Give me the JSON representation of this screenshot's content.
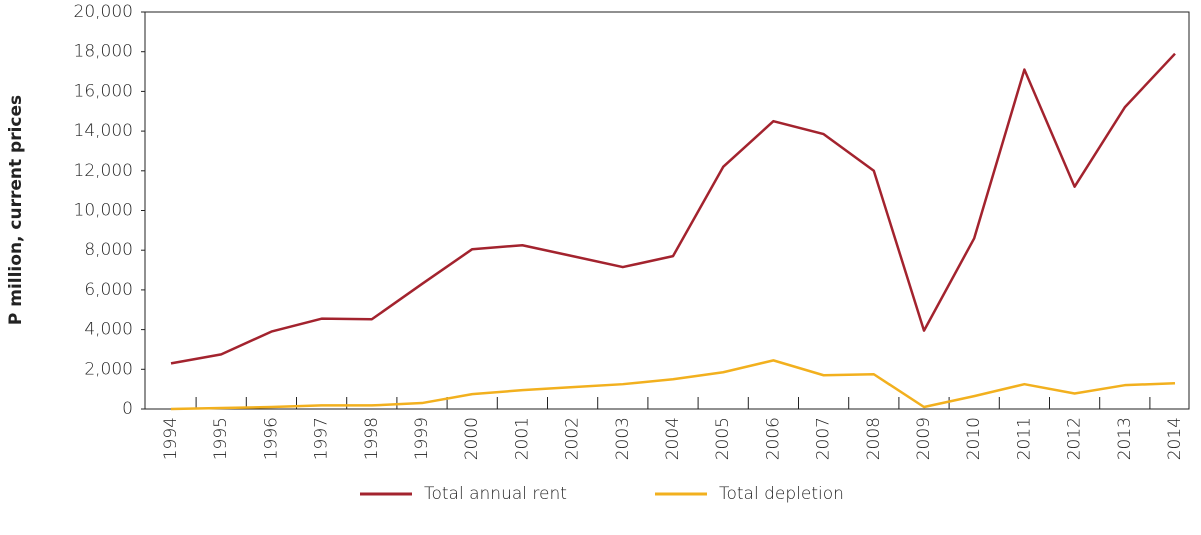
{
  "chart_data": {
    "type": "line",
    "ylabel": "P million, current prices",
    "categories": [
      "1994",
      "1995",
      "1996",
      "1997",
      "1998",
      "1999",
      "2000",
      "2001",
      "2002",
      "2003",
      "2004",
      "2005",
      "2006",
      "2007",
      "2008",
      "2009",
      "2010",
      "2011",
      "2012",
      "2013",
      "2014"
    ],
    "series": [
      {
        "name": "Total annual rent",
        "color": "#a3232e",
        "values": [
          2300,
          2750,
          3900,
          4550,
          4520,
          6300,
          8050,
          8250,
          7700,
          7150,
          7700,
          12200,
          14500,
          13850,
          12000,
          3950,
          8600,
          17100,
          11200,
          15200,
          17900
        ]
      },
      {
        "name": "Total depletion",
        "color": "#f2b01e",
        "values": [
          0,
          50,
          100,
          180,
          180,
          300,
          750,
          950,
          1100,
          1250,
          1500,
          1850,
          2450,
          1700,
          1750,
          100,
          650,
          1250,
          780,
          1200,
          1300
        ]
      }
    ],
    "ylim": [
      0,
      20000
    ],
    "yticks": [
      0,
      {
        "value": 2000,
        "label": "2,000"
      },
      {
        "value": 4000,
        "label": "4,000"
      },
      {
        "value": 6000,
        "label": "6,000"
      },
      {
        "value": 8000,
        "label": "8,000"
      },
      {
        "value": 10000,
        "label": "10,000"
      },
      {
        "value": 12000,
        "label": "12,000"
      },
      {
        "value": 14000,
        "label": "14,000"
      },
      {
        "value": 16000,
        "label": "16,000"
      },
      {
        "value": 18000,
        "label": "18,000"
      },
      {
        "value": 20000,
        "label": "20,000"
      }
    ],
    "grid": false,
    "legend": "bottom"
  }
}
